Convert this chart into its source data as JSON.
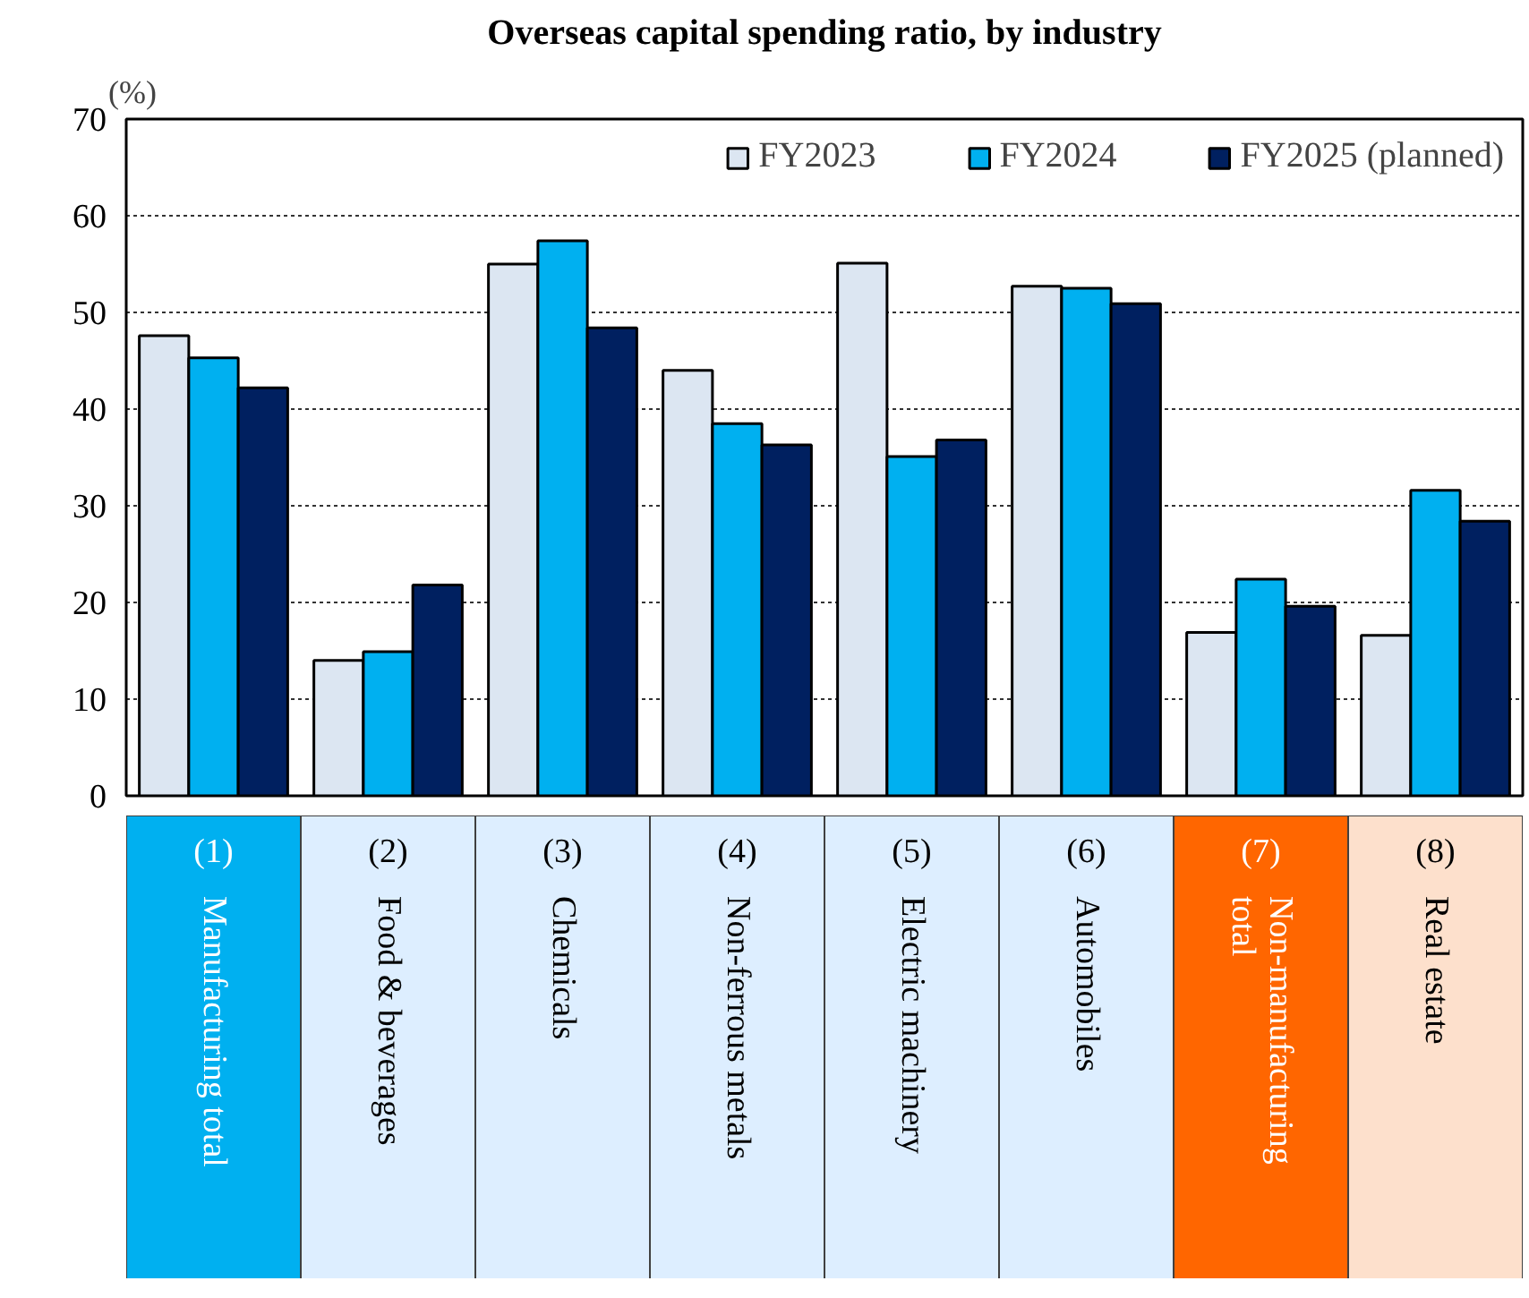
{
  "chart_data": {
    "type": "bar",
    "title": "Overseas capital spending ratio, by industry",
    "ylabel": "(%)",
    "categories": [
      "(1)\nManufacturing total",
      "(2)\nFood & beverages",
      "(3)\nChemicals",
      "(4)\nNon-ferrous metals",
      "(5)\nElectric machinery",
      "(6)\nAutomobiles",
      "(7)\nNon-manufacturing\ntotal",
      "(8)\nReal estate"
    ],
    "series": [
      {
        "name": "FY2023",
        "color": "#dce6f2",
        "values": [
          47.6,
          14.0,
          55.0,
          44.0,
          55.1,
          52.7,
          16.9,
          16.6
        ]
      },
      {
        "name": "FY2024",
        "color": "#00b0f0",
        "values": [
          45.3,
          14.9,
          57.4,
          38.5,
          35.1,
          52.5,
          22.4,
          31.6
        ]
      },
      {
        "name": "FY2025 (planned)",
        "color": "#002060",
        "values": [
          42.2,
          21.8,
          48.4,
          36.3,
          36.8,
          50.9,
          19.6,
          28.4
        ]
      }
    ],
    "ylim": [
      0,
      70
    ],
    "yticks": [
      0,
      10,
      20,
      30,
      40,
      50,
      60,
      70
    ],
    "grid": "y",
    "legend": "top right"
  }
}
